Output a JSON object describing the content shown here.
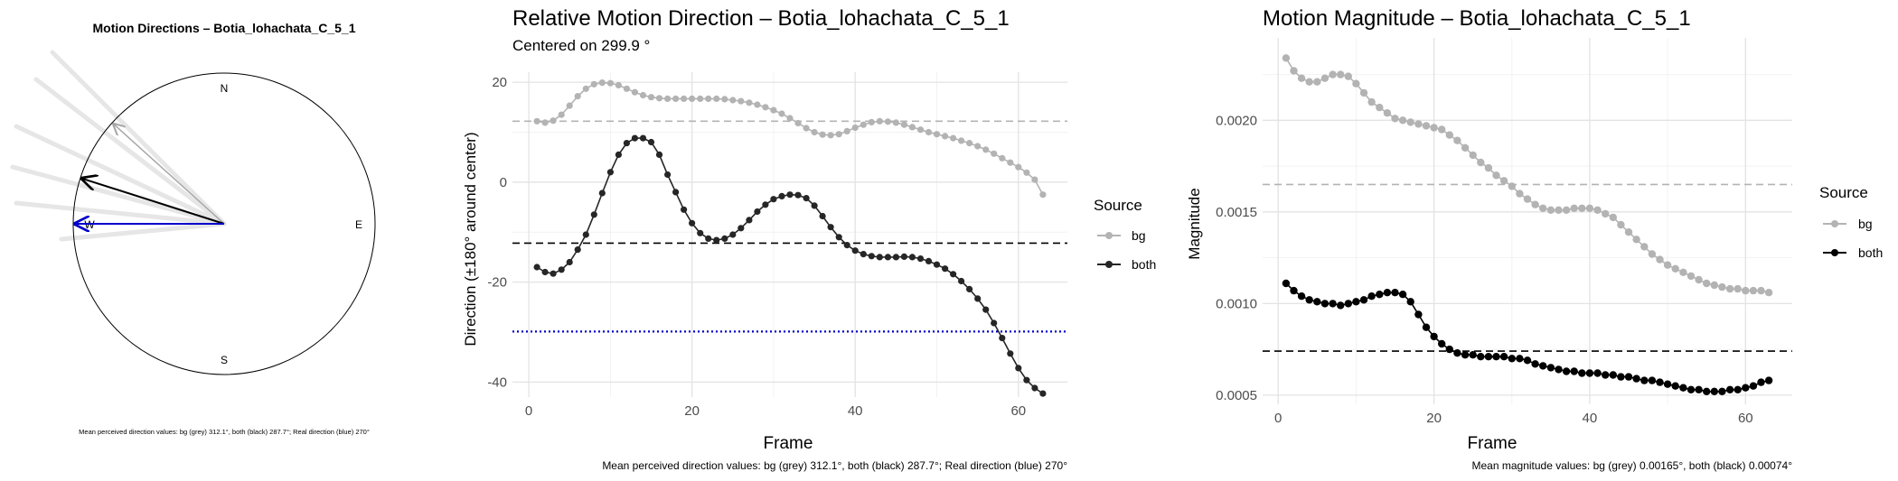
{
  "chart_data": [
    {
      "type": "compass",
      "title": "Motion Directions – Botia_lohachata_C_5_1",
      "cardinals": [
        "N",
        "E",
        "S",
        "W"
      ],
      "arrows": [
        {
          "name": "bg",
          "angle_deg": 312.1,
          "color": "#a6a6a6"
        },
        {
          "name": "both",
          "angle_deg": 287.7,
          "color": "#000000"
        },
        {
          "name": "real",
          "angle_deg": 270,
          "color": "#0000cc"
        }
      ],
      "caption": "Mean perceived direction values: bg (grey) 312.1°, both (black) 287.7°; Real direction (blue) 270°"
    },
    {
      "type": "line",
      "title": "Relative Motion Direction – Botia_lohachata_C_5_1",
      "subtitle": "Centered on  299.9 °",
      "xlabel": "Frame",
      "ylabel": "Direction (±180° around center)",
      "xlim": [
        -2,
        66
      ],
      "ylim": [
        -43,
        22
      ],
      "xticks": [
        0,
        20,
        40,
        60
      ],
      "yticks": [
        20,
        0,
        -20,
        -40
      ],
      "legend_title": "Source",
      "legend": [
        "bg",
        "both"
      ],
      "x": [
        1,
        2,
        3,
        4,
        5,
        6,
        7,
        8,
        9,
        10,
        11,
        12,
        13,
        14,
        15,
        16,
        17,
        18,
        19,
        20,
        21,
        22,
        23,
        24,
        25,
        26,
        27,
        28,
        29,
        30,
        31,
        32,
        33,
        34,
        35,
        36,
        37,
        38,
        39,
        40,
        41,
        42,
        43,
        44,
        45,
        46,
        47,
        48,
        49,
        50,
        51,
        52,
        53,
        54,
        55,
        56,
        57,
        58,
        59,
        60,
        61,
        62,
        63
      ],
      "series": [
        {
          "name": "bg",
          "color": "#b3b3b3",
          "values": [
            12.2,
            11.9,
            12.3,
            13.5,
            15.3,
            17.2,
            18.7,
            19.6,
            19.9,
            19.8,
            19.4,
            18.7,
            18.0,
            17.4,
            17.0,
            16.8,
            16.7,
            16.7,
            16.7,
            16.7,
            16.7,
            16.7,
            16.7,
            16.6,
            16.4,
            16.2,
            15.9,
            15.5,
            15.0,
            14.4,
            13.7,
            12.8,
            11.8,
            10.8,
            10.0,
            9.5,
            9.4,
            9.6,
            10.2,
            10.9,
            11.5,
            12.0,
            12.2,
            12.1,
            11.9,
            11.5,
            11.0,
            10.5,
            10.0,
            9.6,
            9.2,
            8.8,
            8.3,
            7.8,
            7.2,
            6.5,
            5.7,
            4.8,
            3.9,
            3.0,
            1.9,
            0.5,
            -2.5
          ]
        },
        {
          "name": "both",
          "color": "#262626",
          "values": [
            -17.0,
            -18.0,
            -18.3,
            -17.5,
            -16.0,
            -13.5,
            -10.5,
            -6.5,
            -2.2,
            2.0,
            5.5,
            7.8,
            8.8,
            8.8,
            8.0,
            5.5,
            1.5,
            -2.0,
            -5.5,
            -8.2,
            -10.2,
            -11.3,
            -11.6,
            -11.3,
            -10.5,
            -9.2,
            -7.6,
            -5.9,
            -4.5,
            -3.4,
            -2.8,
            -2.5,
            -2.6,
            -3.2,
            -4.7,
            -6.8,
            -9.0,
            -11.0,
            -12.6,
            -13.7,
            -14.4,
            -14.8,
            -15.0,
            -15.0,
            -15.0,
            -14.9,
            -15.0,
            -15.3,
            -15.8,
            -16.5,
            -17.3,
            -18.4,
            -19.8,
            -21.4,
            -23.3,
            -25.5,
            -28.2,
            -31.2,
            -34.3,
            -37.2,
            -39.6,
            -41.2,
            -42.3
          ]
        }
      ],
      "hlines": [
        {
          "name": "bg-mean",
          "y": 12.2,
          "color": "#b3b3b3",
          "style": "dashed"
        },
        {
          "name": "both-mean",
          "y": -12.2,
          "color": "#000000",
          "style": "dashed"
        },
        {
          "name": "real",
          "y": -29.9,
          "color": "#0000cc",
          "style": "dotted"
        }
      ],
      "caption": "Mean perceived direction values: bg (grey) 312.1°, both (black) 287.7°; Real direction (blue) 270°"
    },
    {
      "type": "line",
      "title": "Motion Magnitude – Botia_lohachata_C_5_1",
      "xlabel": "Frame",
      "ylabel": "Magnitude",
      "xlim": [
        -2,
        66
      ],
      "ylim": [
        0.00045,
        0.00245
      ],
      "xticks": [
        0,
        20,
        40,
        60
      ],
      "yticks": [
        0.002,
        0.0015,
        0.001,
        0.0005
      ],
      "ytick_labels": [
        "0.0020",
        "0.0015",
        "0.0010",
        "0.0005"
      ],
      "legend_title": "Source",
      "legend": [
        "bg",
        "both"
      ],
      "x": [
        1,
        2,
        3,
        4,
        5,
        6,
        7,
        8,
        9,
        10,
        11,
        12,
        13,
        14,
        15,
        16,
        17,
        18,
        19,
        20,
        21,
        22,
        23,
        24,
        25,
        26,
        27,
        28,
        29,
        30,
        31,
        32,
        33,
        34,
        35,
        36,
        37,
        38,
        39,
        40,
        41,
        42,
        43,
        44,
        45,
        46,
        47,
        48,
        49,
        50,
        51,
        52,
        53,
        54,
        55,
        56,
        57,
        58,
        59,
        60,
        61,
        62,
        63
      ],
      "series": [
        {
          "name": "bg",
          "color": "#b3b3b3",
          "values": [
            0.00234,
            0.00227,
            0.00223,
            0.00221,
            0.00221,
            0.00223,
            0.00225,
            0.00225,
            0.00224,
            0.0022,
            0.00215,
            0.0021,
            0.00207,
            0.00204,
            0.00201,
            0.002,
            0.00199,
            0.00198,
            0.00197,
            0.00196,
            0.00195,
            0.00192,
            0.00189,
            0.00185,
            0.00181,
            0.00177,
            0.00174,
            0.0017,
            0.00167,
            0.00164,
            0.0016,
            0.00157,
            0.00154,
            0.00152,
            0.00151,
            0.00151,
            0.00151,
            0.00152,
            0.00152,
            0.00152,
            0.00151,
            0.00149,
            0.00147,
            0.00143,
            0.00139,
            0.00135,
            0.00131,
            0.00127,
            0.00124,
            0.00121,
            0.00119,
            0.00117,
            0.00115,
            0.00113,
            0.00111,
            0.0011,
            0.00109,
            0.00108,
            0.00108,
            0.00107,
            0.00107,
            0.00107,
            0.00106
          ]
        },
        {
          "name": "both",
          "color": "#000000",
          "values": [
            0.00111,
            0.00107,
            0.00104,
            0.00102,
            0.00101,
            0.001,
            0.001,
            0.00099,
            0.001,
            0.00101,
            0.00102,
            0.00104,
            0.00105,
            0.00106,
            0.00106,
            0.00105,
            0.00101,
            0.00094,
            0.00087,
            0.00082,
            0.00078,
            0.00075,
            0.00073,
            0.00072,
            0.00072,
            0.00071,
            0.00071,
            0.00071,
            0.00071,
            0.0007,
            0.0007,
            0.00069,
            0.00067,
            0.00066,
            0.00065,
            0.00064,
            0.00063,
            0.00063,
            0.00062,
            0.00062,
            0.00062,
            0.00061,
            0.00061,
            0.0006,
            0.0006,
            0.00059,
            0.00058,
            0.00058,
            0.00057,
            0.00056,
            0.00055,
            0.00054,
            0.00053,
            0.00053,
            0.00052,
            0.00052,
            0.00052,
            0.00053,
            0.00053,
            0.00054,
            0.00055,
            0.00057,
            0.00058
          ]
        }
      ],
      "hlines": [
        {
          "name": "bg-mean",
          "y": 0.00165,
          "color": "#b3b3b3",
          "style": "dashed"
        },
        {
          "name": "both-mean",
          "y": 0.00074,
          "color": "#000000",
          "style": "dashed"
        }
      ],
      "caption": "Mean magnitude values: bg (grey) 0.00165°, both (black) 0.00074°"
    }
  ]
}
